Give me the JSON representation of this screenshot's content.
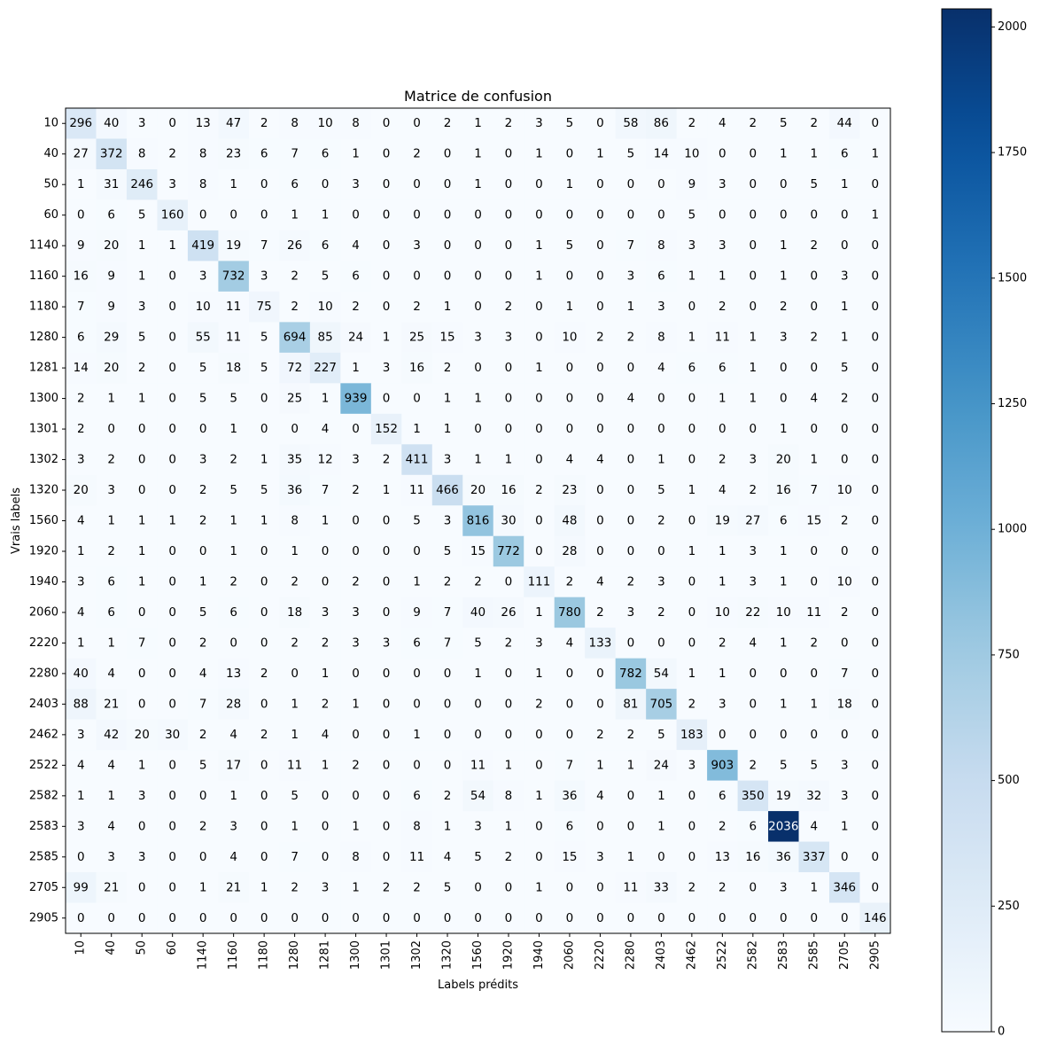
{
  "chart_data": {
    "type": "heatmap",
    "title": "Matrice de confusion",
    "xlabel": "Labels prédits",
    "ylabel": "Vrais labels",
    "labels": [
      "10",
      "40",
      "50",
      "60",
      "1140",
      "1160",
      "1180",
      "1280",
      "1281",
      "1300",
      "1301",
      "1302",
      "1320",
      "1560",
      "1920",
      "1940",
      "2060",
      "2220",
      "2280",
      "2403",
      "2462",
      "2522",
      "2582",
      "2583",
      "2585",
      "2705",
      "2905"
    ],
    "matrix": [
      [
        296,
        40,
        3,
        0,
        13,
        47,
        2,
        8,
        10,
        8,
        0,
        0,
        2,
        1,
        2,
        3,
        5,
        0,
        58,
        86,
        2,
        4,
        2,
        5,
        2,
        44,
        0
      ],
      [
        27,
        372,
        8,
        2,
        8,
        23,
        6,
        7,
        6,
        1,
        0,
        2,
        0,
        1,
        0,
        1,
        0,
        1,
        5,
        14,
        10,
        0,
        0,
        1,
        1,
        6,
        1
      ],
      [
        1,
        31,
        246,
        3,
        8,
        1,
        0,
        6,
        0,
        3,
        0,
        0,
        0,
        1,
        0,
        0,
        1,
        0,
        0,
        0,
        9,
        3,
        0,
        0,
        5,
        1,
        0
      ],
      [
        0,
        6,
        5,
        160,
        0,
        0,
        0,
        1,
        1,
        0,
        0,
        0,
        0,
        0,
        0,
        0,
        0,
        0,
        0,
        0,
        5,
        0,
        0,
        0,
        0,
        0,
        1
      ],
      [
        9,
        20,
        1,
        1,
        419,
        19,
        7,
        26,
        6,
        4,
        0,
        3,
        0,
        0,
        0,
        1,
        5,
        0,
        7,
        8,
        3,
        3,
        0,
        1,
        2,
        0,
        0
      ],
      [
        16,
        9,
        1,
        0,
        3,
        732,
        3,
        2,
        5,
        6,
        0,
        0,
        0,
        0,
        0,
        1,
        0,
        0,
        3,
        6,
        1,
        1,
        0,
        1,
        0,
        3,
        0
      ],
      [
        7,
        9,
        3,
        0,
        10,
        11,
        75,
        2,
        10,
        2,
        0,
        2,
        1,
        0,
        2,
        0,
        1,
        0,
        1,
        3,
        0,
        2,
        0,
        2,
        0,
        1,
        0
      ],
      [
        6,
        29,
        5,
        0,
        55,
        11,
        5,
        694,
        85,
        24,
        1,
        25,
        15,
        3,
        3,
        0,
        10,
        2,
        2,
        8,
        1,
        11,
        1,
        3,
        2,
        1,
        0
      ],
      [
        14,
        20,
        2,
        0,
        5,
        18,
        5,
        72,
        227,
        1,
        3,
        16,
        2,
        0,
        0,
        1,
        0,
        0,
        0,
        4,
        6,
        6,
        1,
        0,
        0,
        5,
        0
      ],
      [
        2,
        1,
        1,
        0,
        5,
        5,
        0,
        25,
        1,
        939,
        0,
        0,
        1,
        1,
        0,
        0,
        0,
        0,
        4,
        0,
        0,
        1,
        1,
        0,
        4,
        2,
        0
      ],
      [
        2,
        0,
        0,
        0,
        0,
        1,
        0,
        0,
        4,
        0,
        152,
        1,
        1,
        0,
        0,
        0,
        0,
        0,
        0,
        0,
        0,
        0,
        0,
        1,
        0,
        0,
        0
      ],
      [
        3,
        2,
        0,
        0,
        3,
        2,
        1,
        35,
        12,
        3,
        2,
        411,
        3,
        1,
        1,
        0,
        4,
        4,
        0,
        1,
        0,
        2,
        3,
        20,
        1,
        0,
        0
      ],
      [
        20,
        3,
        0,
        0,
        2,
        5,
        5,
        36,
        7,
        2,
        1,
        11,
        466,
        20,
        16,
        2,
        23,
        0,
        0,
        5,
        1,
        4,
        2,
        16,
        7,
        10,
        0
      ],
      [
        4,
        1,
        1,
        1,
        2,
        1,
        1,
        8,
        1,
        0,
        0,
        5,
        3,
        816,
        30,
        0,
        48,
        0,
        0,
        2,
        0,
        19,
        27,
        6,
        15,
        2,
        0
      ],
      [
        1,
        2,
        1,
        0,
        0,
        1,
        0,
        1,
        0,
        0,
        0,
        0,
        5,
        15,
        772,
        0,
        28,
        0,
        0,
        0,
        1,
        1,
        3,
        1,
        0,
        0,
        0
      ],
      [
        3,
        6,
        1,
        0,
        1,
        2,
        0,
        2,
        0,
        2,
        0,
        1,
        2,
        2,
        0,
        111,
        2,
        4,
        2,
        3,
        0,
        1,
        3,
        1,
        0,
        10,
        0
      ],
      [
        4,
        6,
        0,
        0,
        5,
        6,
        0,
        18,
        3,
        3,
        0,
        9,
        7,
        40,
        26,
        1,
        780,
        2,
        3,
        2,
        0,
        10,
        22,
        10,
        11,
        2,
        0
      ],
      [
        1,
        1,
        7,
        0,
        2,
        0,
        0,
        2,
        2,
        3,
        3,
        6,
        7,
        5,
        2,
        3,
        4,
        133,
        0,
        0,
        0,
        2,
        4,
        1,
        2,
        0,
        0
      ],
      [
        40,
        4,
        0,
        0,
        4,
        13,
        2,
        0,
        1,
        0,
        0,
        0,
        0,
        1,
        0,
        1,
        0,
        0,
        782,
        54,
        1,
        1,
        0,
        0,
        0,
        7,
        0
      ],
      [
        88,
        21,
        0,
        0,
        7,
        28,
        0,
        1,
        2,
        1,
        0,
        0,
        0,
        0,
        0,
        2,
        0,
        0,
        81,
        705,
        2,
        3,
        0,
        1,
        1,
        18,
        0
      ],
      [
        3,
        42,
        20,
        30,
        2,
        4,
        2,
        1,
        4,
        0,
        0,
        1,
        0,
        0,
        0,
        0,
        0,
        2,
        2,
        5,
        183,
        0,
        0,
        0,
        0,
        0,
        0
      ],
      [
        4,
        4,
        1,
        0,
        5,
        17,
        0,
        11,
        1,
        2,
        0,
        0,
        0,
        11,
        1,
        0,
        7,
        1,
        1,
        24,
        3,
        903,
        2,
        5,
        5,
        3,
        0
      ],
      [
        1,
        1,
        3,
        0,
        0,
        1,
        0,
        5,
        0,
        0,
        0,
        6,
        2,
        54,
        8,
        1,
        36,
        4,
        0,
        1,
        0,
        6,
        350,
        19,
        32,
        3,
        0
      ],
      [
        3,
        4,
        0,
        0,
        2,
        3,
        0,
        1,
        0,
        1,
        0,
        8,
        1,
        3,
        1,
        0,
        6,
        0,
        0,
        1,
        0,
        2,
        6,
        2036,
        4,
        1,
        0
      ],
      [
        0,
        3,
        3,
        0,
        0,
        4,
        0,
        7,
        0,
        8,
        0,
        11,
        4,
        5,
        2,
        0,
        15,
        3,
        1,
        0,
        0,
        13,
        16,
        36,
        337,
        0,
        0
      ],
      [
        99,
        21,
        0,
        0,
        1,
        21,
        1,
        2,
        3,
        1,
        2,
        2,
        5,
        0,
        0,
        1,
        0,
        0,
        11,
        33,
        2,
        2,
        0,
        3,
        1,
        346,
        0
      ],
      [
        0,
        0,
        0,
        0,
        0,
        0,
        0,
        0,
        0,
        0,
        0,
        0,
        0,
        0,
        0,
        0,
        0,
        0,
        0,
        0,
        0,
        0,
        0,
        0,
        0,
        0,
        146
      ]
    ],
    "colormap": "Blues",
    "vmin": 0,
    "vmax": 2036,
    "colorbar_ticks": [
      "0",
      "250",
      "500",
      "750",
      "1000",
      "1250",
      "1500",
      "1750",
      "2000"
    ],
    "colors": {
      "low": "#f7fbff",
      "high": "#08306b",
      "text_dark": "#000000",
      "text_light": "#ffffff"
    }
  }
}
